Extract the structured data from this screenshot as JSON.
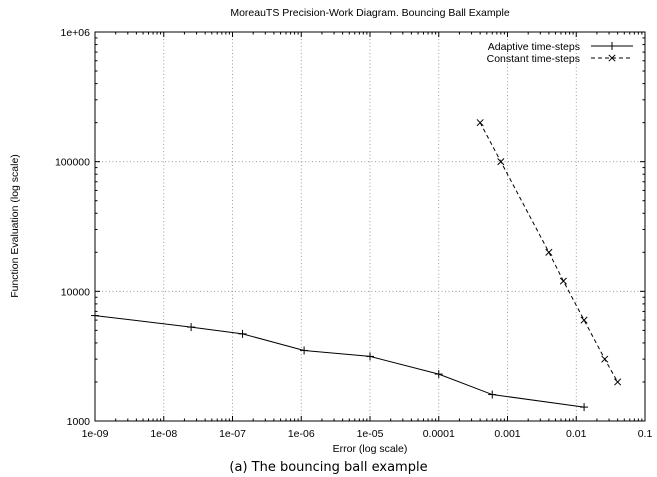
{
  "chart_data": {
    "type": "line",
    "title": "MoreauTS Precision-Work Diagram. Bouncing Ball Example",
    "xlabel": "Error (log scale)",
    "ylabel": "Function Evaluation  (log scale)",
    "x_scale": "log",
    "y_scale": "log",
    "xlim": [
      1e-09,
      0.1
    ],
    "ylim": [
      1000,
      1000000
    ],
    "grid": true,
    "legend_position": "top-right",
    "x_ticks": [
      {
        "value": 1e-09,
        "label": "1e-09"
      },
      {
        "value": 1e-08,
        "label": "1e-08"
      },
      {
        "value": 1e-07,
        "label": "1e-07"
      },
      {
        "value": 1e-06,
        "label": "1e-06"
      },
      {
        "value": 1e-05,
        "label": "1e-05"
      },
      {
        "value": 0.0001,
        "label": "0.0001"
      },
      {
        "value": 0.001,
        "label": "0.001"
      },
      {
        "value": 0.01,
        "label": "0.01"
      },
      {
        "value": 0.1,
        "label": "0.1"
      }
    ],
    "y_ticks": [
      {
        "value": 1000,
        "label": "1000"
      },
      {
        "value": 10000,
        "label": "10000"
      },
      {
        "value": 100000,
        "label": "100000"
      },
      {
        "value": 1000000,
        "label": "1e+06"
      }
    ],
    "series": [
      {
        "name": "Adaptive time-steps",
        "marker": "plus",
        "line": "solid",
        "color": "#000000",
        "points": [
          {
            "x": 1e-09,
            "y": 6500
          },
          {
            "x": 2.5e-08,
            "y": 5300
          },
          {
            "x": 1.4e-07,
            "y": 4700
          },
          {
            "x": 1.1e-06,
            "y": 3500
          },
          {
            "x": 1e-05,
            "y": 3150
          },
          {
            "x": 0.0001,
            "y": 2300
          },
          {
            "x": 0.0006,
            "y": 1600
          },
          {
            "x": 0.013,
            "y": 1280
          }
        ]
      },
      {
        "name": "Constant time-steps",
        "marker": "cross",
        "line": "dashed",
        "color": "#000000",
        "points": [
          {
            "x": 0.0004,
            "y": 200000
          },
          {
            "x": 0.0008,
            "y": 100000
          },
          {
            "x": 0.004,
            "y": 20000
          },
          {
            "x": 0.0065,
            "y": 12000
          },
          {
            "x": 0.013,
            "y": 6000
          },
          {
            "x": 0.026,
            "y": 3000
          },
          {
            "x": 0.04,
            "y": 2000
          }
        ]
      }
    ]
  },
  "caption": "(a)  The bouncing ball example"
}
